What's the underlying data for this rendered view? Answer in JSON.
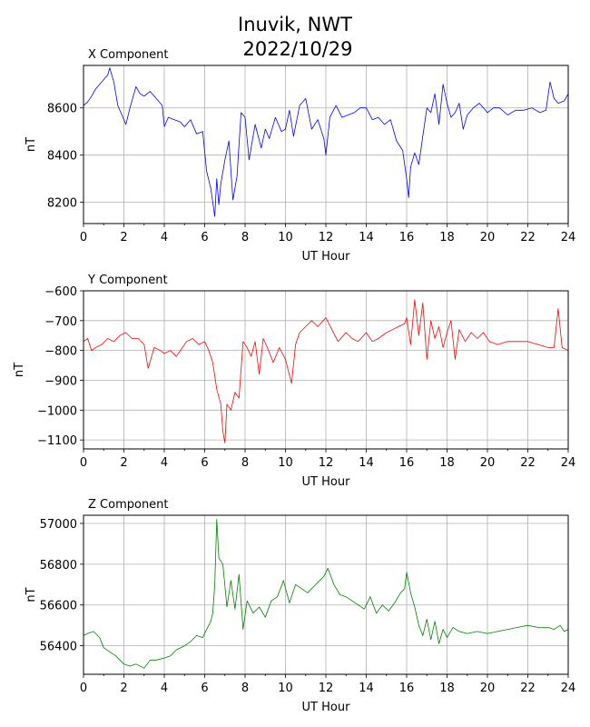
{
  "figure": {
    "title_line1": "Inuvik, NWT",
    "title_line2": "2022/10/29"
  },
  "chart_data": [
    {
      "type": "line",
      "title": "X Component",
      "xlabel": "UT Hour",
      "ylabel": "nT",
      "color": "#0000ff",
      "xlim": [
        0,
        24
      ],
      "ylim": [
        8110,
        8780
      ],
      "xticks": [
        0,
        2,
        4,
        6,
        8,
        10,
        12,
        14,
        16,
        18,
        20,
        22,
        24
      ],
      "yticks": [
        8200,
        8400,
        8600
      ],
      "grid": true,
      "series": [
        {
          "x": [
            0,
            0.2,
            0.4,
            0.6,
            0.8,
            1.0,
            1.2,
            1.3,
            1.5,
            1.7,
            1.9,
            2.1,
            2.3,
            2.6,
            2.8,
            3.0,
            3.3,
            3.6,
            3.9,
            4.0,
            4.2,
            4.5,
            4.8,
            5.0,
            5.3,
            5.6,
            5.9,
            6.1,
            6.3,
            6.5,
            6.6,
            6.7,
            6.8,
            7.0,
            7.2,
            7.4,
            7.6,
            7.8,
            8.0,
            8.2,
            8.5,
            8.8,
            9.0,
            9.2,
            9.5,
            9.8,
            10.0,
            10.2,
            10.4,
            10.7,
            11.0,
            11.3,
            11.6,
            11.9,
            12.0,
            12.2,
            12.5,
            12.8,
            13.1,
            13.4,
            13.7,
            14.0,
            14.3,
            14.6,
            14.9,
            15.2,
            15.5,
            15.8,
            16.0,
            16.1,
            16.2,
            16.4,
            16.6,
            16.8,
            17.0,
            17.2,
            17.4,
            17.6,
            17.8,
            18.0,
            18.2,
            18.4,
            18.6,
            18.8,
            19.0,
            19.3,
            19.6,
            20.0,
            20.3,
            20.6,
            21.0,
            21.4,
            21.8,
            22.2,
            22.6,
            22.9,
            23.1,
            23.3,
            23.5,
            23.8,
            24.0
          ],
          "values": [
            8610,
            8625,
            8650,
            8680,
            8700,
            8720,
            8740,
            8770,
            8710,
            8610,
            8570,
            8530,
            8600,
            8690,
            8660,
            8650,
            8670,
            8640,
            8610,
            8520,
            8560,
            8550,
            8540,
            8520,
            8550,
            8490,
            8500,
            8330,
            8260,
            8140,
            8300,
            8190,
            8280,
            8380,
            8460,
            8210,
            8310,
            8580,
            8560,
            8380,
            8530,
            8430,
            8510,
            8470,
            8560,
            8500,
            8510,
            8590,
            8480,
            8610,
            8640,
            8510,
            8550,
            8470,
            8400,
            8560,
            8610,
            8560,
            8570,
            8580,
            8600,
            8600,
            8550,
            8560,
            8530,
            8550,
            8460,
            8420,
            8300,
            8220,
            8350,
            8410,
            8360,
            8480,
            8600,
            8580,
            8660,
            8530,
            8700,
            8620,
            8560,
            8580,
            8620,
            8510,
            8570,
            8600,
            8620,
            8580,
            8600,
            8600,
            8570,
            8590,
            8590,
            8600,
            8580,
            8590,
            8710,
            8640,
            8620,
            8630,
            8660
          ]
        }
      ]
    },
    {
      "type": "line",
      "title": "Y Component",
      "xlabel": "UT Hour",
      "ylabel": "nT",
      "color": "#ff0000",
      "xlim": [
        0,
        24
      ],
      "ylim": [
        -1130,
        -600
      ],
      "xticks": [
        0,
        2,
        4,
        6,
        8,
        10,
        12,
        14,
        16,
        18,
        20,
        22,
        24
      ],
      "yticks": [
        -1100,
        -1000,
        -900,
        -800,
        -700,
        -600
      ],
      "grid": true,
      "series": [
        {
          "x": [
            0,
            0.2,
            0.4,
            0.6,
            0.9,
            1.2,
            1.5,
            1.8,
            2.1,
            2.4,
            2.7,
            3.0,
            3.2,
            3.5,
            3.8,
            4.0,
            4.3,
            4.6,
            4.9,
            5.1,
            5.4,
            5.7,
            6.0,
            6.2,
            6.4,
            6.6,
            6.8,
            6.9,
            7.0,
            7.1,
            7.3,
            7.5,
            7.7,
            7.9,
            8.1,
            8.3,
            8.5,
            8.7,
            8.9,
            9.1,
            9.4,
            9.7,
            10.0,
            10.3,
            10.5,
            10.7,
            11.0,
            11.3,
            11.6,
            12.0,
            12.3,
            12.6,
            13.0,
            13.3,
            13.6,
            14.0,
            14.3,
            14.6,
            15.0,
            15.3,
            15.6,
            15.9,
            16.0,
            16.2,
            16.4,
            16.6,
            16.8,
            17.0,
            17.2,
            17.4,
            17.6,
            17.8,
            18.0,
            18.2,
            18.4,
            18.6,
            18.9,
            19.2,
            19.5,
            19.8,
            20.1,
            20.5,
            21.0,
            21.5,
            22.0,
            22.5,
            23.0,
            23.3,
            23.5,
            23.7,
            24.0
          ],
          "values": [
            -770,
            -760,
            -800,
            -790,
            -780,
            -760,
            -770,
            -750,
            -740,
            -760,
            -760,
            -780,
            -860,
            -790,
            -800,
            -810,
            -800,
            -820,
            -790,
            -770,
            -760,
            -780,
            -770,
            -800,
            -840,
            -930,
            -980,
            -1070,
            -1110,
            -980,
            -1000,
            -940,
            -960,
            -770,
            -790,
            -820,
            -770,
            -880,
            -760,
            -790,
            -840,
            -790,
            -830,
            -910,
            -780,
            -740,
            -720,
            -700,
            -720,
            -690,
            -730,
            -770,
            -740,
            -760,
            -770,
            -740,
            -770,
            -760,
            -740,
            -730,
            -720,
            -710,
            -690,
            -780,
            -630,
            -750,
            -640,
            -830,
            -700,
            -760,
            -720,
            -790,
            -740,
            -700,
            -830,
            -730,
            -770,
            -740,
            -760,
            -740,
            -770,
            -780,
            -770,
            -770,
            -770,
            -780,
            -790,
            -790,
            -660,
            -790,
            -800
          ]
        }
      ]
    },
    {
      "type": "line",
      "title": "Z Component",
      "xlabel": "UT Hour",
      "ylabel": "nT",
      "color": "#008000",
      "xlim": [
        0,
        24
      ],
      "ylim": [
        56260,
        57040
      ],
      "xticks": [
        0,
        2,
        4,
        6,
        8,
        10,
        12,
        14,
        16,
        18,
        20,
        22,
        24
      ],
      "yticks": [
        56400,
        56600,
        56800,
        57000
      ],
      "grid": true,
      "series": [
        {
          "x": [
            0,
            0.2,
            0.5,
            0.8,
            1.0,
            1.3,
            1.6,
            2.0,
            2.3,
            2.6,
            3.0,
            3.3,
            3.6,
            4.0,
            4.3,
            4.6,
            5.0,
            5.3,
            5.6,
            5.9,
            6.1,
            6.3,
            6.4,
            6.5,
            6.6,
            6.7,
            6.9,
            7.1,
            7.3,
            7.5,
            7.7,
            7.9,
            8.1,
            8.4,
            8.7,
            9.0,
            9.3,
            9.6,
            9.9,
            10.2,
            10.5,
            10.8,
            11.1,
            11.4,
            11.7,
            11.9,
            12.1,
            12.4,
            12.7,
            13.0,
            13.3,
            13.6,
            13.9,
            14.2,
            14.5,
            14.8,
            15.1,
            15.4,
            15.7,
            15.9,
            16.0,
            16.2,
            16.4,
            16.6,
            16.8,
            17.0,
            17.2,
            17.4,
            17.6,
            17.8,
            18.0,
            18.3,
            18.6,
            19.0,
            19.5,
            20.0,
            20.5,
            21.0,
            21.5,
            22.0,
            22.5,
            23.0,
            23.3,
            23.6,
            23.8,
            24.0
          ],
          "values": [
            56450,
            56460,
            56470,
            56440,
            56390,
            56370,
            56350,
            56310,
            56300,
            56310,
            56290,
            56330,
            56330,
            56340,
            56350,
            56380,
            56400,
            56420,
            56450,
            56440,
            56480,
            56520,
            56560,
            56700,
            57020,
            56830,
            56800,
            56590,
            56720,
            56580,
            56750,
            56480,
            56620,
            56560,
            56590,
            56540,
            56620,
            56640,
            56720,
            56610,
            56700,
            56680,
            56660,
            56690,
            56720,
            56740,
            56780,
            56700,
            56650,
            56640,
            56620,
            56600,
            56580,
            56640,
            56560,
            56600,
            56570,
            56610,
            56660,
            56680,
            56760,
            56660,
            56590,
            56500,
            56450,
            56530,
            56430,
            56520,
            56410,
            56480,
            56440,
            56490,
            56470,
            56460,
            56470,
            56460,
            56470,
            56480,
            56490,
            56500,
            56490,
            56490,
            56480,
            56500,
            56470,
            56480
          ]
        }
      ]
    }
  ]
}
